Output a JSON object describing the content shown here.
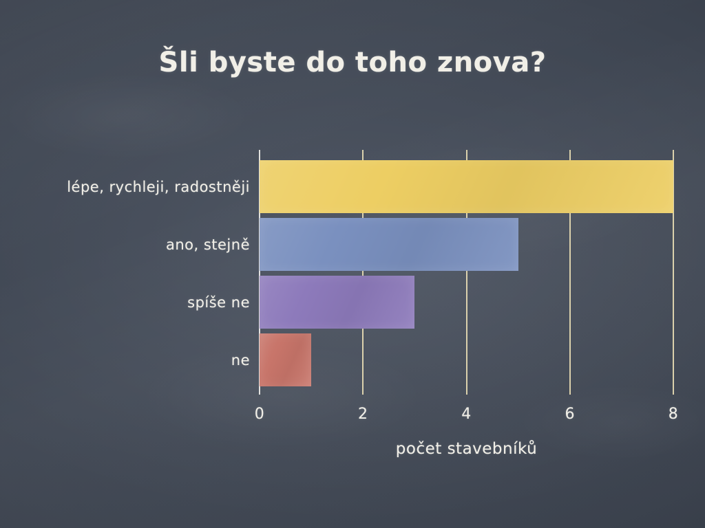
{
  "chart_data": {
    "type": "bar",
    "orientation": "horizontal",
    "title": "Šli byste do toho znova?",
    "categories": [
      "lépe, rychleji, radostněji",
      "ano, stejně",
      "spíše ne",
      "ne"
    ],
    "values": [
      8,
      5,
      3,
      1
    ],
    "bar_colors": [
      "#edce63",
      "#7a90bf",
      "#8d7abb",
      "#c8756a"
    ],
    "xlabel": "počet stavebníků",
    "x_ticks": [
      0,
      2,
      4,
      6,
      8
    ],
    "xlim": [
      0,
      8
    ],
    "grid": true,
    "legend": false,
    "background_color": "#3d4450",
    "gridline_color": "#ece0b6",
    "text_color": "#f1efe7"
  }
}
